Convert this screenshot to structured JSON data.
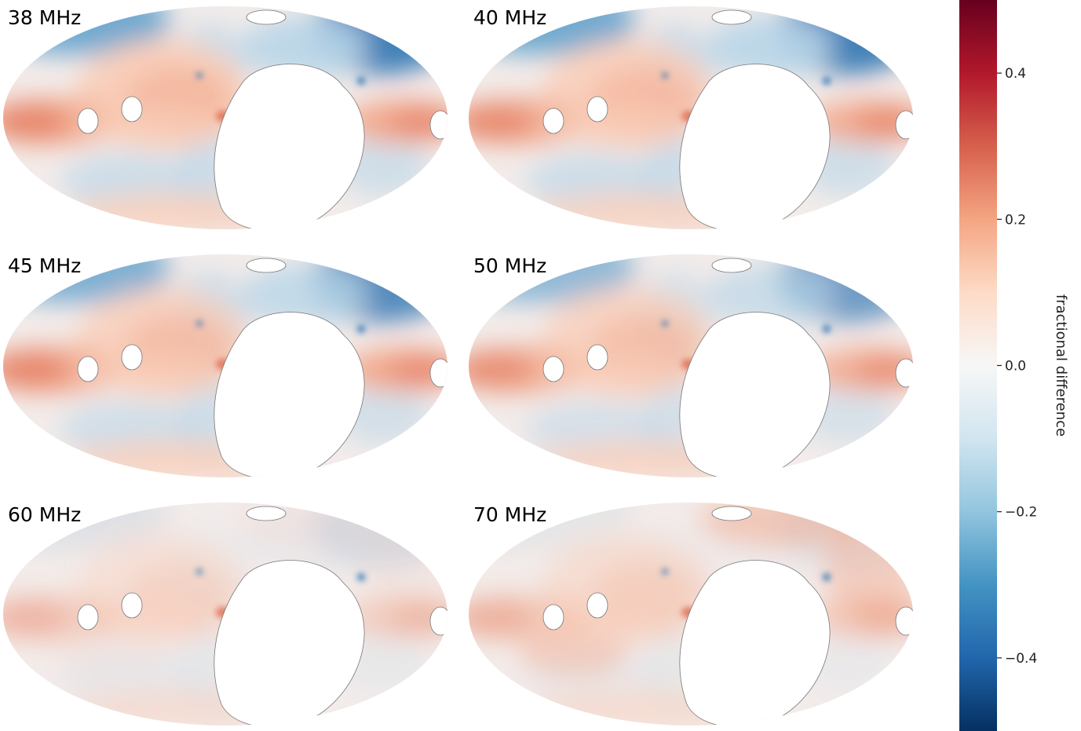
{
  "chart_data": {
    "type": "heatmap",
    "projection": "mollweide",
    "colormap": "RdBu_r",
    "panels": [
      {
        "title": "38 MHz",
        "north_blue_strength": 1.0,
        "plane_red_strength": 1.0,
        "inner_red_strength": 1.0,
        "north_red_strength": 0.0
      },
      {
        "title": "40 MHz",
        "north_blue_strength": 1.0,
        "plane_red_strength": 0.95,
        "inner_red_strength": 0.9,
        "north_red_strength": 0.0
      },
      {
        "title": "45 MHz",
        "north_blue_strength": 0.9,
        "plane_red_strength": 1.0,
        "inner_red_strength": 0.85,
        "north_red_strength": 0.0
      },
      {
        "title": "50 MHz",
        "north_blue_strength": 0.75,
        "plane_red_strength": 0.9,
        "inner_red_strength": 0.8,
        "north_red_strength": 0.0
      },
      {
        "title": "60 MHz",
        "north_blue_strength": 0.15,
        "plane_red_strength": 0.45,
        "inner_red_strength": 0.4,
        "north_red_strength": 0.1
      },
      {
        "title": "70 MHz",
        "north_blue_strength": 0.1,
        "plane_red_strength": 0.5,
        "inner_red_strength": 0.5,
        "north_red_strength": 0.6
      }
    ],
    "colorbar": {
      "label": "fractional difference",
      "range": [
        -0.5,
        0.5
      ],
      "ticks": [
        -0.4,
        -0.2,
        0.0,
        0.2,
        0.4
      ],
      "tick_labels": [
        "−0.4",
        "−0.2",
        "0.0",
        "0.2",
        "0.4"
      ],
      "colors": [
        "#053061",
        "#2166ac",
        "#4393c3",
        "#92c5de",
        "#d1e5f0",
        "#f7f7f7",
        "#fddbc7",
        "#f4a582",
        "#d6604d",
        "#b2182b",
        "#67001f"
      ]
    }
  }
}
